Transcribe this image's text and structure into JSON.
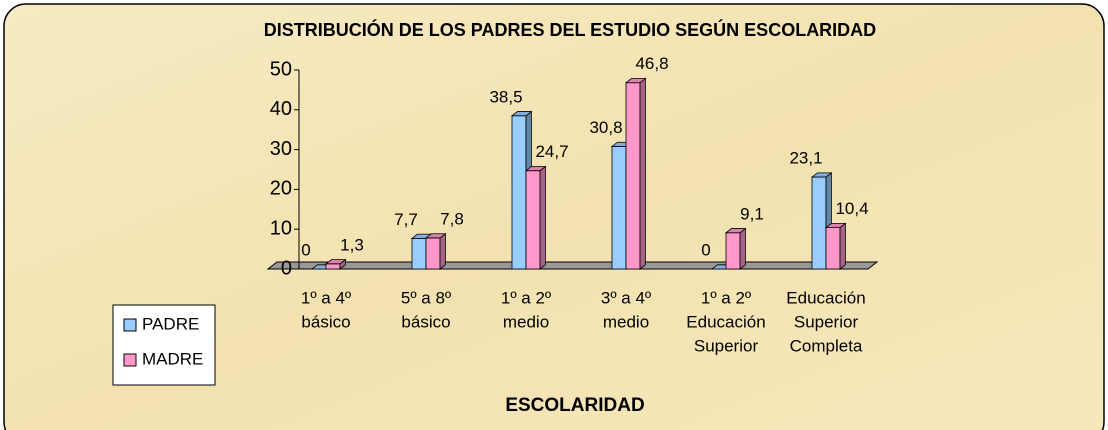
{
  "chart_data": {
    "type": "bar",
    "title": "DISTRIBUCIÓN DE LOS PADRES DEL ESTUDIO SEGÚN ESCOLARIDAD",
    "x_label": "ESCOLARIDAD",
    "categories": [
      [
        "1º a 4º",
        "básico"
      ],
      [
        "5º a 8º",
        "básico"
      ],
      [
        "1º a 2º",
        "medio"
      ],
      [
        "3º a 4º",
        "medio"
      ],
      [
        "1º a 2º",
        "Educación",
        "Superior"
      ],
      [
        "Educación",
        "Superior",
        "Completa"
      ]
    ],
    "series": [
      {
        "name": "PADRE",
        "color": "#99ccff",
        "values": [
          0,
          7.7,
          38.5,
          30.8,
          0,
          23.1
        ],
        "value_labels": [
          "0",
          "7,7",
          "38,5",
          "30,8",
          "0",
          "23,1"
        ]
      },
      {
        "name": "MADRE",
        "color": "#ff99cc",
        "values": [
          1.3,
          7.8,
          24.7,
          46.8,
          9.1,
          10.4
        ],
        "value_labels": [
          "1,3",
          "7,8",
          "24,7",
          "46,8",
          "9,1",
          "10,4"
        ]
      }
    ],
    "ylim": [
      0,
      50
    ],
    "yticks": [
      0,
      10,
      20,
      30,
      40,
      50
    ],
    "legend": "left"
  }
}
